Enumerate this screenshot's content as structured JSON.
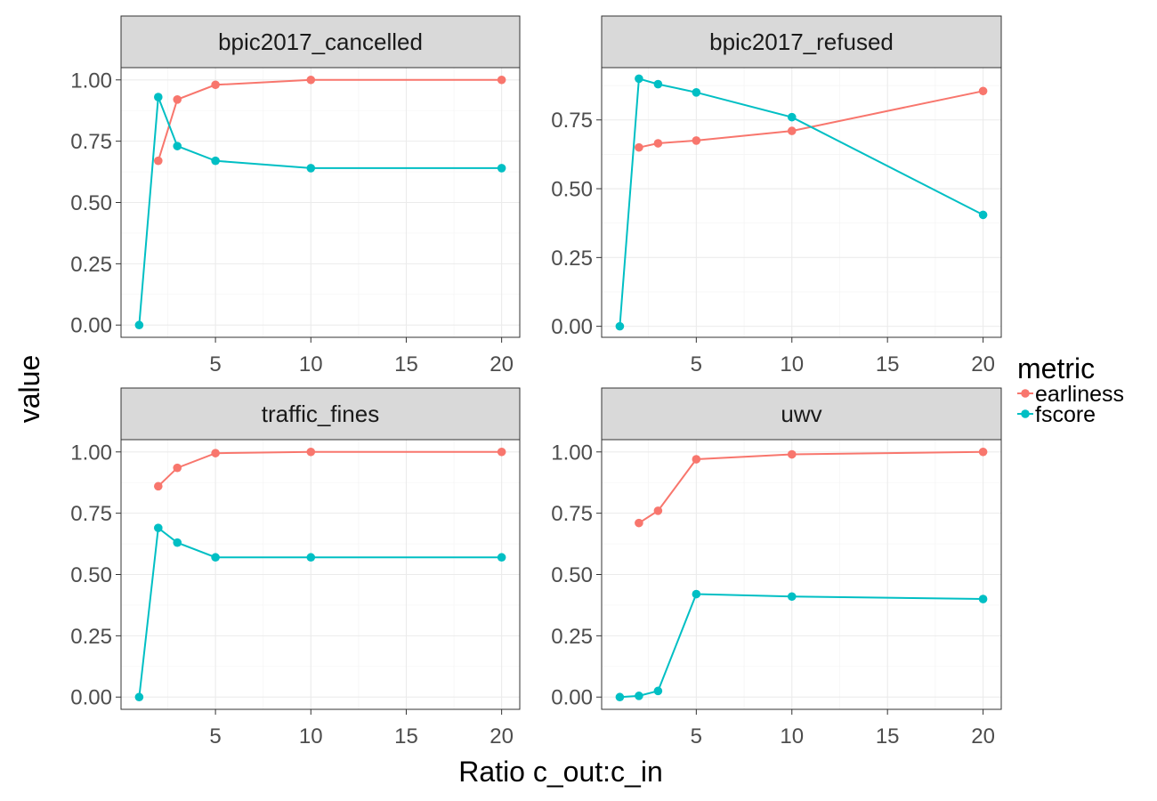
{
  "chart_data": {
    "type": "line",
    "layout": "facet_wrap 2x2",
    "xlabel": "Ratio c_out:c_in",
    "ylabel": "value",
    "legend": {
      "title": "metric",
      "position": "right",
      "entries": [
        {
          "name": "earliness",
          "color": "#F8766D"
        },
        {
          "name": "fscore",
          "color": "#00BFC4"
        }
      ]
    },
    "xlim": [
      0.05,
      20.95
    ],
    "x_ticks": [
      5,
      10,
      15,
      20
    ],
    "x_tick_labels": [
      "5",
      "10",
      "15",
      "20"
    ],
    "panels": [
      {
        "title": "bpic2017_cancelled",
        "ylim": [
          -0.05,
          1.05
        ],
        "y_ticks": [
          0,
          0.25,
          0.5,
          0.75,
          1
        ],
        "y_tick_labels": [
          "0.00",
          "0.25",
          "0.50",
          "0.75",
          "1.00"
        ],
        "series": [
          {
            "name": "earliness",
            "x": [
              2,
              3,
              5,
              10,
              20
            ],
            "values": [
              0.67,
              0.92,
              0.98,
              1.0,
              1.0
            ]
          },
          {
            "name": "fscore",
            "x": [
              1,
              2,
              3,
              5,
              10,
              20
            ],
            "values": [
              0.0,
              0.93,
              0.73,
              0.67,
              0.64,
              0.64
            ]
          }
        ]
      },
      {
        "title": "bpic2017_refused",
        "ylim": [
          -0.04,
          0.94
        ],
        "y_ticks": [
          0,
          0.25,
          0.5,
          0.75
        ],
        "y_tick_labels": [
          "0.00",
          "0.25",
          "0.50",
          "0.75"
        ],
        "series": [
          {
            "name": "earliness",
            "x": [
              2,
              3,
              5,
              10,
              20
            ],
            "values": [
              0.65,
              0.665,
              0.675,
              0.71,
              0.855
            ]
          },
          {
            "name": "fscore",
            "x": [
              1,
              2,
              3,
              5,
              10,
              20
            ],
            "values": [
              0.0,
              0.9,
              0.88,
              0.85,
              0.76,
              0.405
            ]
          }
        ]
      },
      {
        "title": "traffic_fines",
        "ylim": [
          -0.05,
          1.05
        ],
        "y_ticks": [
          0,
          0.25,
          0.5,
          0.75,
          1
        ],
        "y_tick_labels": [
          "0.00",
          "0.25",
          "0.50",
          "0.75",
          "1.00"
        ],
        "series": [
          {
            "name": "earliness",
            "x": [
              2,
              3,
              5,
              10,
              20
            ],
            "values": [
              0.86,
              0.935,
              0.995,
              1.0,
              1.0
            ]
          },
          {
            "name": "fscore",
            "x": [
              1,
              2,
              3,
              5,
              10,
              20
            ],
            "values": [
              0.0,
              0.69,
              0.63,
              0.57,
              0.57,
              0.57
            ]
          }
        ]
      },
      {
        "title": "uwv",
        "ylim": [
          -0.05,
          1.05
        ],
        "y_ticks": [
          0,
          0.25,
          0.5,
          0.75,
          1
        ],
        "y_tick_labels": [
          "0.00",
          "0.25",
          "0.50",
          "0.75",
          "1.00"
        ],
        "series": [
          {
            "name": "earliness",
            "x": [
              2,
              3,
              5,
              10,
              20
            ],
            "values": [
              0.71,
              0.76,
              0.97,
              0.99,
              1.0
            ]
          },
          {
            "name": "fscore",
            "x": [
              1,
              2,
              3,
              5,
              10,
              20
            ],
            "values": [
              0.0,
              0.005,
              0.025,
              0.42,
              0.41,
              0.4
            ]
          }
        ]
      }
    ]
  }
}
